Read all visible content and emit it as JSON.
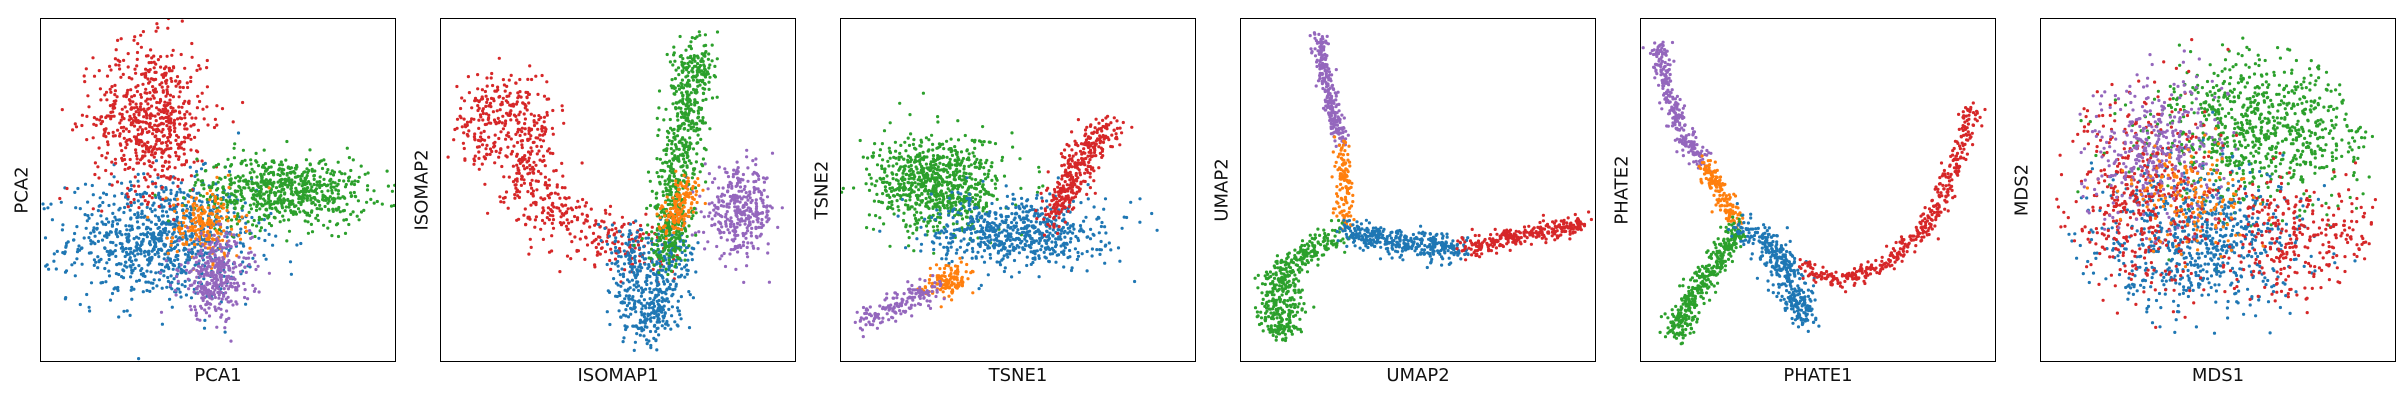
{
  "figure": {
    "colors": {
      "blue": "#1f77b4",
      "orange": "#ff7f0e",
      "green": "#2ca02c",
      "red": "#d62728",
      "purple": "#9467bd"
    }
  },
  "chart_data": [
    {
      "type": "scatter",
      "title": "",
      "xlabel": "PCA1",
      "ylabel": "PCA2",
      "xticks": [],
      "yticks": [],
      "grid": false,
      "legend": "none",
      "xlim": [
        0,
        100
      ],
      "ylim": [
        0,
        100
      ],
      "clusters": [
        {
          "color": "blue",
          "n": 900,
          "cx": 34,
          "cy": 36,
          "sx": 13,
          "sy": 9
        },
        {
          "color": "red",
          "n": 650,
          "cx": 31,
          "cy": 71,
          "sx": 8,
          "sy": 11
        },
        {
          "color": "green",
          "n": 700,
          "cx": 68,
          "cy": 50,
          "sx": 12,
          "sy": 5
        },
        {
          "color": "orange",
          "n": 200,
          "cx": 46,
          "cy": 40,
          "sx": 5,
          "sy": 5
        },
        {
          "color": "purple",
          "n": 350,
          "cx": 49,
          "cy": 25,
          "sx": 5,
          "sy": 6
        }
      ]
    },
    {
      "type": "scatter",
      "title": "",
      "xlabel": "ISOMAP1",
      "ylabel": "ISOMAP2",
      "xticks": [],
      "yticks": [],
      "grid": false,
      "legend": "none",
      "xlim": [
        0,
        100
      ],
      "ylim": [
        0,
        100
      ],
      "curves": [
        {
          "color": "red",
          "n": 650,
          "spread": 4.5,
          "path": [
            [
              12,
              60
            ],
            [
              10,
              72
            ],
            [
              18,
              78
            ],
            [
              26,
              70
            ],
            [
              22,
              55
            ],
            [
              30,
              45
            ],
            [
              42,
              38
            ],
            [
              52,
              34
            ],
            [
              60,
              30
            ]
          ]
        },
        {
          "color": "blue",
          "n": 500,
          "spread": 3.5,
          "path": [
            [
              52,
              36
            ],
            [
              55,
              26
            ],
            [
              56,
              16
            ],
            [
              58,
              10
            ],
            [
              62,
              14
            ],
            [
              64,
              28
            ],
            [
              66,
              40
            ]
          ]
        },
        {
          "color": "green",
          "n": 700,
          "spread": 3,
          "path": [
            [
              63,
              30
            ],
            [
              66,
              50
            ],
            [
              68,
              65
            ],
            [
              70,
              80
            ],
            [
              72,
              92
            ]
          ]
        },
        {
          "color": "orange",
          "n": 150,
          "spread": 2,
          "path": [
            [
              64,
              40
            ],
            [
              68,
              47
            ],
            [
              70,
              52
            ]
          ]
        }
      ],
      "clusters": [
        {
          "color": "purple",
          "n": 350,
          "cx": 84,
          "cy": 44,
          "sx": 5,
          "sy": 6
        }
      ]
    },
    {
      "type": "scatter",
      "title": "",
      "xlabel": "TSNE1",
      "ylabel": "TSNE2",
      "xticks": [],
      "yticks": [],
      "grid": false,
      "legend": "none",
      "xlim": [
        0,
        100
      ],
      "ylim": [
        0,
        100
      ],
      "clusters": [
        {
          "color": "green",
          "n": 800,
          "cx": 27,
          "cy": 52,
          "sx": 9,
          "sy": 7
        },
        {
          "color": "blue",
          "n": 650,
          "cx": 50,
          "cy": 38,
          "sx": 12,
          "sy": 5
        }
      ],
      "curves": [
        {
          "color": "red",
          "n": 350,
          "spread": 2.5,
          "path": [
            [
              60,
              42
            ],
            [
              65,
              55
            ],
            [
              70,
              64
            ],
            [
              76,
              68
            ]
          ]
        },
        {
          "color": "orange",
          "n": 130,
          "spread": 2.2,
          "path": [
            [
              26,
              22
            ],
            [
              30,
              24
            ],
            [
              34,
              26
            ]
          ]
        },
        {
          "color": "purple",
          "n": 160,
          "spread": 2,
          "path": [
            [
              6,
              12
            ],
            [
              12,
              15
            ],
            [
              20,
              19
            ],
            [
              27,
              22
            ]
          ]
        }
      ]
    },
    {
      "type": "scatter",
      "title": "",
      "xlabel": "UMAP2",
      "ylabel": "UMAP2",
      "xticks": [],
      "yticks": [],
      "grid": false,
      "legend": "none",
      "xlim": [
        0,
        100
      ],
      "ylim": [
        0,
        100
      ],
      "curves": [
        {
          "color": "purple",
          "n": 260,
          "spread": 1.2,
          "path": [
            [
              22,
              95
            ],
            [
              23,
              85
            ],
            [
              26,
              72
            ],
            [
              28,
              64
            ]
          ]
        },
        {
          "color": "orange",
          "n": 120,
          "spread": 1.2,
          "path": [
            [
              28,
              64
            ],
            [
              29,
              52
            ],
            [
              29,
              40
            ]
          ]
        },
        {
          "color": "green",
          "n": 450,
          "spread": 2,
          "path": [
            [
              29,
              38
            ],
            [
              22,
              34
            ],
            [
              12,
              28
            ],
            [
              8,
              20
            ],
            [
              9,
              10
            ],
            [
              13,
              8
            ],
            [
              14,
              16
            ],
            [
              12,
              26
            ]
          ]
        },
        {
          "color": "blue",
          "n": 380,
          "spread": 2,
          "path": [
            [
              30,
              38
            ],
            [
              40,
              36
            ],
            [
              52,
              34
            ],
            [
              62,
              33
            ]
          ]
        },
        {
          "color": "red",
          "n": 300,
          "spread": 1.4,
          "path": [
            [
              62,
              33
            ],
            [
              75,
              36
            ],
            [
              87,
              39
            ],
            [
              96,
              40
            ]
          ]
        }
      ]
    },
    {
      "type": "scatter",
      "title": "",
      "xlabel": "PHATE1",
      "ylabel": "PHATE2",
      "xticks": [],
      "yticks": [],
      "grid": false,
      "legend": "none",
      "xlim": [
        0,
        100
      ],
      "ylim": [
        0,
        100
      ],
      "curves": [
        {
          "color": "purple",
          "n": 280,
          "spread": 1.3,
          "path": [
            [
              5,
              93
            ],
            [
              7,
              80
            ],
            [
              12,
              66
            ],
            [
              18,
              58
            ]
          ]
        },
        {
          "color": "orange",
          "n": 160,
          "spread": 1.5,
          "path": [
            [
              18,
              58
            ],
            [
              22,
              50
            ],
            [
              27,
              40
            ]
          ]
        },
        {
          "color": "green",
          "n": 380,
          "spread": 1.8,
          "path": [
            [
              27,
              40
            ],
            [
              22,
              30
            ],
            [
              15,
              20
            ],
            [
              9,
              8
            ]
          ]
        },
        {
          "color": "blue",
          "n": 380,
          "spread": 2.2,
          "path": [
            [
              27,
              40
            ],
            [
              34,
              36
            ],
            [
              40,
              28
            ],
            [
              44,
              20
            ],
            [
              46,
              12
            ],
            [
              42,
              20
            ],
            [
              38,
              32
            ],
            [
              34,
              38
            ]
          ]
        },
        {
          "color": "red",
          "n": 420,
          "spread": 1.4,
          "path": [
            [
              44,
              28
            ],
            [
              56,
              24
            ],
            [
              68,
              28
            ],
            [
              80,
              40
            ],
            [
              88,
              55
            ],
            [
              92,
              70
            ],
            [
              94,
              74
            ]
          ]
        }
      ]
    },
    {
      "type": "scatter",
      "title": "",
      "xlabel": "MDS1",
      "ylabel": "MDS2",
      "xticks": [],
      "yticks": [],
      "grid": false,
      "legend": "none",
      "xlim": [
        0,
        100
      ],
      "ylim": [
        0,
        100
      ],
      "disk": {
        "cx": 50,
        "cy": 50,
        "r": 46
      },
      "clusters": [
        {
          "color": "green",
          "n": 800,
          "cx": 60,
          "cy": 68,
          "sx": 16,
          "sy": 11,
          "inDisk": true
        },
        {
          "color": "blue",
          "n": 750,
          "cx": 44,
          "cy": 36,
          "sx": 15,
          "sy": 11,
          "inDisk": true
        },
        {
          "color": "red",
          "n": 450,
          "cx": 28,
          "cy": 50,
          "sx": 11,
          "sy": 16,
          "inDisk": true
        },
        {
          "color": "red",
          "n": 300,
          "cx": 72,
          "cy": 36,
          "sx": 10,
          "sy": 9,
          "inDisk": true
        },
        {
          "color": "purple",
          "n": 380,
          "cx": 32,
          "cy": 62,
          "sx": 10,
          "sy": 10,
          "inDisk": true
        },
        {
          "color": "orange",
          "n": 150,
          "cx": 42,
          "cy": 48,
          "sx": 8,
          "sy": 8,
          "inDisk": true
        }
      ]
    }
  ]
}
